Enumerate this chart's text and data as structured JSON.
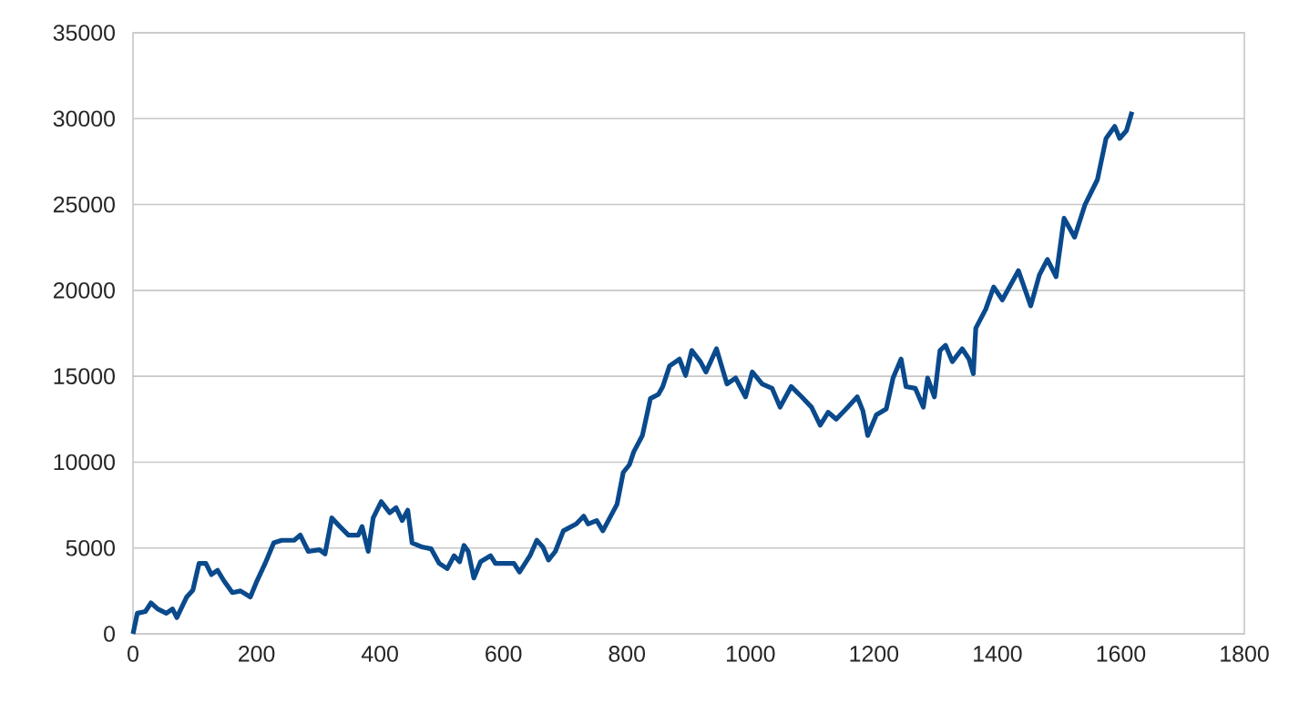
{
  "chart_data": {
    "type": "line",
    "xlim": [
      0,
      1800
    ],
    "ylim": [
      0,
      35000
    ],
    "xticks": [
      0,
      200,
      400,
      600,
      800,
      1000,
      1200,
      1400,
      1600,
      1800
    ],
    "yticks": [
      0,
      5000,
      10000,
      15000,
      20000,
      25000,
      30000,
      35000
    ],
    "grid": "y",
    "legend": false,
    "marker": "none",
    "line_style": "solid",
    "series": [
      {
        "color": "#0a4a8c",
        "x": [
          0,
          7,
          20,
          29,
          40,
          54,
          64,
          71,
          87,
          97,
          107,
          118,
          127,
          137,
          147,
          161,
          174,
          190,
          201,
          214,
          228,
          241,
          261,
          271,
          284,
          302,
          311,
          322,
          335,
          349,
          365,
          371,
          381,
          389,
          402,
          416,
          426,
          436,
          445,
          452,
          469,
          483,
          496,
          509,
          520,
          529,
          536,
          543,
          552,
          563,
          579,
          587,
          617,
          626,
          643,
          654,
          664,
          673,
          684,
          697,
          718,
          730,
          737,
          751,
          761,
          784,
          794,
          804,
          811,
          825,
          838,
          851,
          858,
          869,
          885,
          895,
          905,
          919,
          928,
          945,
          962,
          976,
          992,
          1003,
          1019,
          1035,
          1048,
          1066,
          1083,
          1099,
          1113,
          1126,
          1139,
          1155,
          1173,
          1182,
          1190,
          1204,
          1220,
          1231,
          1244,
          1252,
          1267,
          1280,
          1287,
          1298,
          1307,
          1316,
          1327,
          1343,
          1354,
          1361,
          1365,
          1381,
          1394,
          1408,
          1434,
          1454,
          1468,
          1481,
          1495,
          1508,
          1525,
          1542,
          1562,
          1576,
          1590,
          1598,
          1609,
          1618
        ],
        "values": [
          0,
          1200,
          1300,
          1800,
          1450,
          1200,
          1450,
          950,
          2150,
          2550,
          4100,
          4100,
          3450,
          3700,
          3100,
          2400,
          2500,
          2150,
          3100,
          4100,
          5300,
          5450,
          5450,
          5750,
          4800,
          4900,
          4650,
          6750,
          6250,
          5750,
          5750,
          6250,
          4800,
          6750,
          7700,
          7050,
          7350,
          6600,
          7200,
          5300,
          5050,
          4950,
          4100,
          3800,
          4550,
          4200,
          5150,
          4800,
          3250,
          4200,
          4550,
          4100,
          4100,
          3600,
          4550,
          5450,
          5050,
          4300,
          4800,
          6000,
          6400,
          6850,
          6400,
          6600,
          6000,
          7550,
          9400,
          9850,
          10600,
          11550,
          13700,
          13950,
          14400,
          15600,
          16000,
          15050,
          16500,
          15850,
          15250,
          16600,
          14550,
          14900,
          13800,
          15250,
          14550,
          14300,
          13200,
          14400,
          13800,
          13200,
          12150,
          12900,
          12500,
          13100,
          13800,
          13000,
          11550,
          12750,
          13100,
          14900,
          16000,
          14400,
          14300,
          13200,
          14900,
          13800,
          16500,
          16800,
          15850,
          16600,
          16000,
          15150,
          17800,
          18900,
          20200,
          19450,
          21150,
          19100,
          20900,
          21800,
          20800,
          24200,
          23100,
          25000,
          26450,
          28850,
          29550,
          28850,
          29300,
          30400
        ]
      }
    ]
  }
}
